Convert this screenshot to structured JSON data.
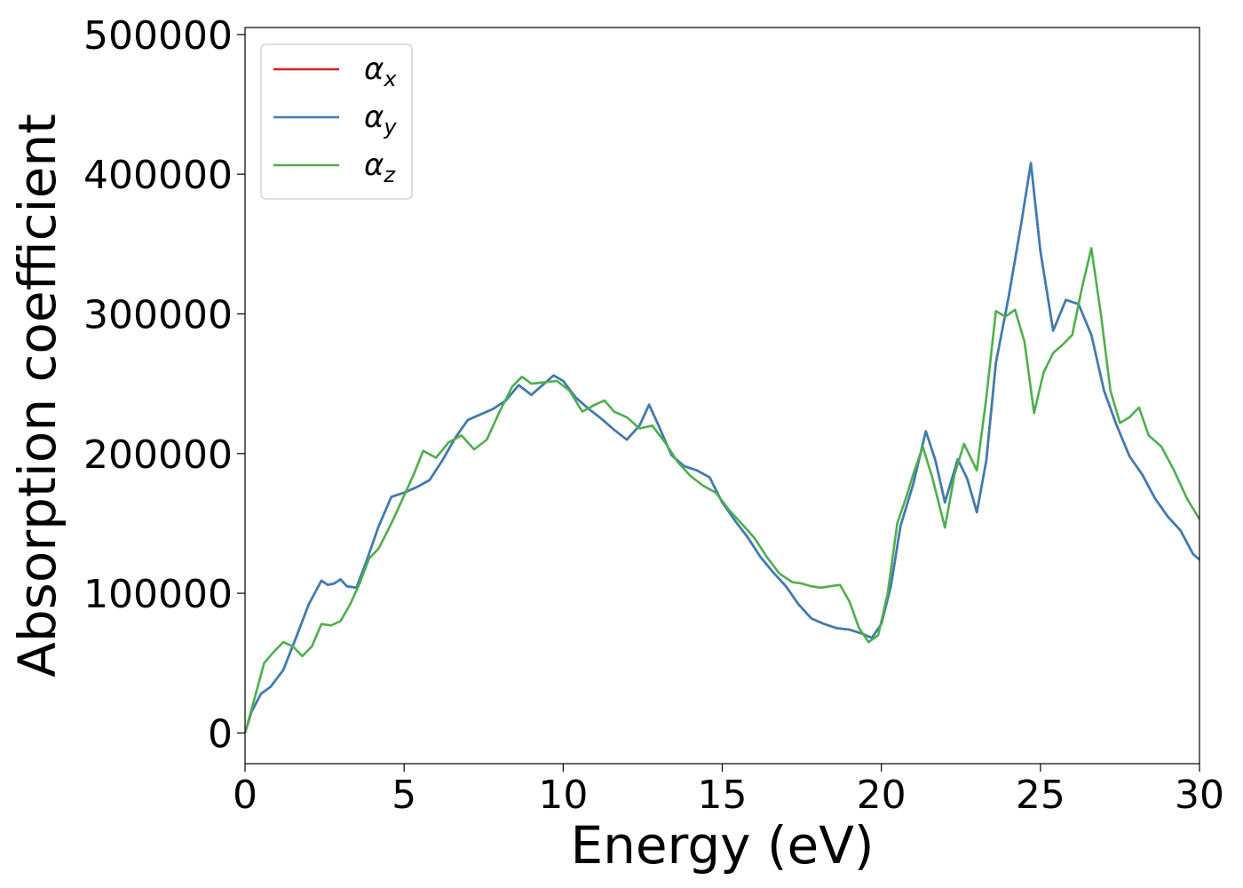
{
  "chart_data": {
    "type": "line",
    "xlabel": "Energy (eV)",
    "ylabel": "Absorption coefficient",
    "xlim": [
      0,
      30
    ],
    "ylim": [
      -22000,
      505000
    ],
    "xticks": [
      0,
      5,
      10,
      15,
      20,
      25,
      30
    ],
    "xtick_labels": [
      "0",
      "5",
      "10",
      "15",
      "20",
      "25",
      "30"
    ],
    "yticks": [
      0,
      100000,
      200000,
      300000,
      400000,
      500000
    ],
    "ytick_labels": [
      "0",
      "100000",
      "200000",
      "300000",
      "400000",
      "500000"
    ],
    "grid": false,
    "legend_position": "top-left",
    "series": [
      {
        "name": "α",
        "subscript": "x",
        "color": "#e41a1c",
        "x": [
          0,
          0.2,
          0.5,
          0.8,
          1.2,
          1.6,
          2.0,
          2.4,
          2.6,
          2.8,
          3.0,
          3.2,
          3.5,
          3.8,
          4.2,
          4.6,
          5.0,
          5.4,
          5.8,
          6.2,
          6.6,
          7.0,
          7.4,
          7.8,
          8.2,
          8.6,
          9.0,
          9.4,
          9.7,
          10.0,
          10.4,
          10.8,
          11.2,
          11.6,
          12.0,
          12.4,
          12.7,
          13.0,
          13.4,
          13.8,
          14.2,
          14.6,
          15.0,
          15.4,
          15.8,
          16.2,
          16.6,
          17.0,
          17.4,
          17.8,
          18.2,
          18.6,
          19.0,
          19.4,
          19.7,
          20.0,
          20.3,
          20.6,
          21.0,
          21.4,
          21.7,
          22.0,
          22.4,
          22.7,
          23.0,
          23.3,
          23.6,
          24.0,
          24.4,
          24.7,
          25.0,
          25.4,
          25.8,
          26.2,
          26.6,
          27.0,
          27.4,
          27.8,
          28.2,
          28.6,
          29.0,
          29.4,
          29.8,
          30.0
        ],
        "y": [
          0,
          15000,
          28000,
          33000,
          45000,
          68000,
          92000,
          109000,
          106000,
          107000,
          110000,
          105000,
          104000,
          122000,
          148000,
          169000,
          172000,
          176000,
          181000,
          195000,
          211000,
          224000,
          228000,
          232000,
          238000,
          249000,
          242000,
          250000,
          256000,
          252000,
          240000,
          232000,
          225000,
          217000,
          210000,
          220000,
          235000,
          220000,
          199000,
          191000,
          188000,
          183000,
          165000,
          152000,
          140000,
          126000,
          115000,
          105000,
          92000,
          82000,
          78000,
          75000,
          74000,
          71000,
          68000,
          78000,
          105000,
          148000,
          178000,
          216000,
          195000,
          165000,
          196000,
          182000,
          158000,
          195000,
          265000,
          312000,
          365000,
          408000,
          345000,
          288000,
          310000,
          307000,
          285000,
          245000,
          220000,
          198000,
          185000,
          168000,
          155000,
          145000,
          128000,
          124000
        ]
      },
      {
        "name": "α",
        "subscript": "y",
        "color": "#377eb8",
        "x": [
          0,
          0.2,
          0.5,
          0.8,
          1.2,
          1.6,
          2.0,
          2.4,
          2.6,
          2.8,
          3.0,
          3.2,
          3.5,
          3.8,
          4.2,
          4.6,
          5.0,
          5.4,
          5.8,
          6.2,
          6.6,
          7.0,
          7.4,
          7.8,
          8.2,
          8.6,
          9.0,
          9.4,
          9.7,
          10.0,
          10.4,
          10.8,
          11.2,
          11.6,
          12.0,
          12.4,
          12.7,
          13.0,
          13.4,
          13.8,
          14.2,
          14.6,
          15.0,
          15.4,
          15.8,
          16.2,
          16.6,
          17.0,
          17.4,
          17.8,
          18.2,
          18.6,
          19.0,
          19.4,
          19.7,
          20.0,
          20.3,
          20.6,
          21.0,
          21.4,
          21.7,
          22.0,
          22.4,
          22.7,
          23.0,
          23.3,
          23.6,
          24.0,
          24.4,
          24.7,
          25.0,
          25.4,
          25.8,
          26.2,
          26.6,
          27.0,
          27.4,
          27.8,
          28.2,
          28.6,
          29.0,
          29.4,
          29.8,
          30.0
        ],
        "y": [
          0,
          15000,
          28000,
          33000,
          45000,
          68000,
          92000,
          109000,
          106000,
          107000,
          110000,
          105000,
          104000,
          122000,
          148000,
          169000,
          172000,
          176000,
          181000,
          195000,
          211000,
          224000,
          228000,
          232000,
          238000,
          249000,
          242000,
          250000,
          256000,
          252000,
          240000,
          232000,
          225000,
          217000,
          210000,
          220000,
          235000,
          220000,
          199000,
          191000,
          188000,
          183000,
          165000,
          152000,
          140000,
          126000,
          115000,
          105000,
          92000,
          82000,
          78000,
          75000,
          74000,
          71000,
          68000,
          78000,
          105000,
          148000,
          178000,
          216000,
          195000,
          165000,
          196000,
          182000,
          158000,
          195000,
          265000,
          312000,
          365000,
          408000,
          345000,
          288000,
          310000,
          307000,
          285000,
          245000,
          220000,
          198000,
          185000,
          168000,
          155000,
          145000,
          128000,
          124000
        ]
      },
      {
        "name": "α",
        "subscript": "z",
        "color": "#4daf4a",
        "x": [
          0,
          0.3,
          0.6,
          0.9,
          1.2,
          1.5,
          1.8,
          2.1,
          2.4,
          2.7,
          3.0,
          3.3,
          3.6,
          3.9,
          4.2,
          4.6,
          5.0,
          5.3,
          5.6,
          6.0,
          6.4,
          6.8,
          7.2,
          7.6,
          8.0,
          8.4,
          8.7,
          9.0,
          9.4,
          9.8,
          10.2,
          10.6,
          11.0,
          11.3,
          11.6,
          12.0,
          12.4,
          12.8,
          13.2,
          13.6,
          14.0,
          14.4,
          14.8,
          15.2,
          15.6,
          16.0,
          16.4,
          16.8,
          17.2,
          17.5,
          17.8,
          18.1,
          18.4,
          18.7,
          19.0,
          19.3,
          19.6,
          19.9,
          20.2,
          20.5,
          20.8,
          21.0,
          21.3,
          21.6,
          22.0,
          22.3,
          22.6,
          23.0,
          23.3,
          23.6,
          23.9,
          24.2,
          24.5,
          24.8,
          25.1,
          25.4,
          25.7,
          26.0,
          26.3,
          26.6,
          26.9,
          27.2,
          27.5,
          27.8,
          28.1,
          28.4,
          28.8,
          29.2,
          29.6,
          30.0
        ],
        "y": [
          0,
          25000,
          50000,
          58000,
          65000,
          62000,
          55000,
          62000,
          78000,
          77000,
          80000,
          92000,
          107000,
          125000,
          132000,
          150000,
          170000,
          185000,
          202000,
          197000,
          208000,
          213000,
          203000,
          210000,
          230000,
          248000,
          255000,
          250000,
          251000,
          252000,
          245000,
          230000,
          235000,
          238000,
          230000,
          226000,
          218000,
          220000,
          208000,
          194000,
          184000,
          177000,
          172000,
          160000,
          150000,
          140000,
          126000,
          114000,
          108000,
          107000,
          105000,
          104000,
          105000,
          106000,
          94000,
          75000,
          65000,
          70000,
          100000,
          150000,
          170000,
          185000,
          205000,
          183000,
          147000,
          185000,
          207000,
          188000,
          240000,
          302000,
          298000,
          303000,
          280000,
          229000,
          258000,
          272000,
          278000,
          285000,
          318000,
          347000,
          300000,
          245000,
          222000,
          226000,
          233000,
          213000,
          205000,
          188000,
          168000,
          153000
        ]
      }
    ]
  }
}
